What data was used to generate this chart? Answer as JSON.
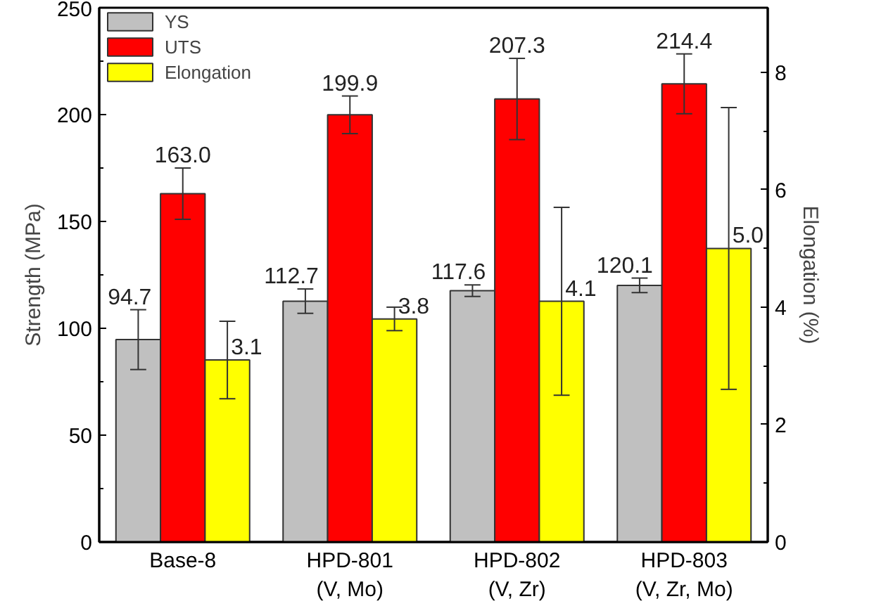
{
  "chart_data": {
    "type": "bar",
    "categories": [
      "Base-8",
      "HPD-801\n(V, Mo)",
      "HPD-802\n(V, Zr)",
      "HPD-803\n(V, Zr, Mo)"
    ],
    "ylabel": "Strength (MPa)",
    "y2label": "Elongation (%)",
    "ylim": [
      0,
      250
    ],
    "yticks": [
      0,
      50,
      100,
      150,
      200,
      250
    ],
    "y2lim": [
      0,
      9.1
    ],
    "y2ticks": [
      0,
      2,
      4,
      6,
      8
    ],
    "grid": false,
    "legend": "top left",
    "series": [
      {
        "name": "YS",
        "color": "#c0c0c0",
        "values": [
          94.7,
          112.7,
          117.6,
          120.1
        ],
        "errors": [
          14,
          5.7,
          2.7,
          3.4
        ],
        "value_labels": [
          "94.7",
          "112.7",
          "117.6",
          "120.1"
        ]
      },
      {
        "name": "UTS",
        "color": "#ff0000",
        "values": [
          163.0,
          199.9,
          207.3,
          214.4
        ],
        "errors": [
          12,
          8.8,
          19,
          14
        ],
        "value_labels": [
          "163.0",
          "199.9",
          "207.3",
          "214.4"
        ]
      },
      {
        "name": "Elongation",
        "color": "#ffff00",
        "axis": "y2",
        "values": [
          3.1,
          3.8,
          4.1,
          5.0
        ],
        "errors": [
          0.66,
          0.2,
          1.6,
          2.4
        ],
        "value_labels": [
          "3.1",
          "3.8",
          "4.1",
          "5.0"
        ]
      }
    ]
  }
}
